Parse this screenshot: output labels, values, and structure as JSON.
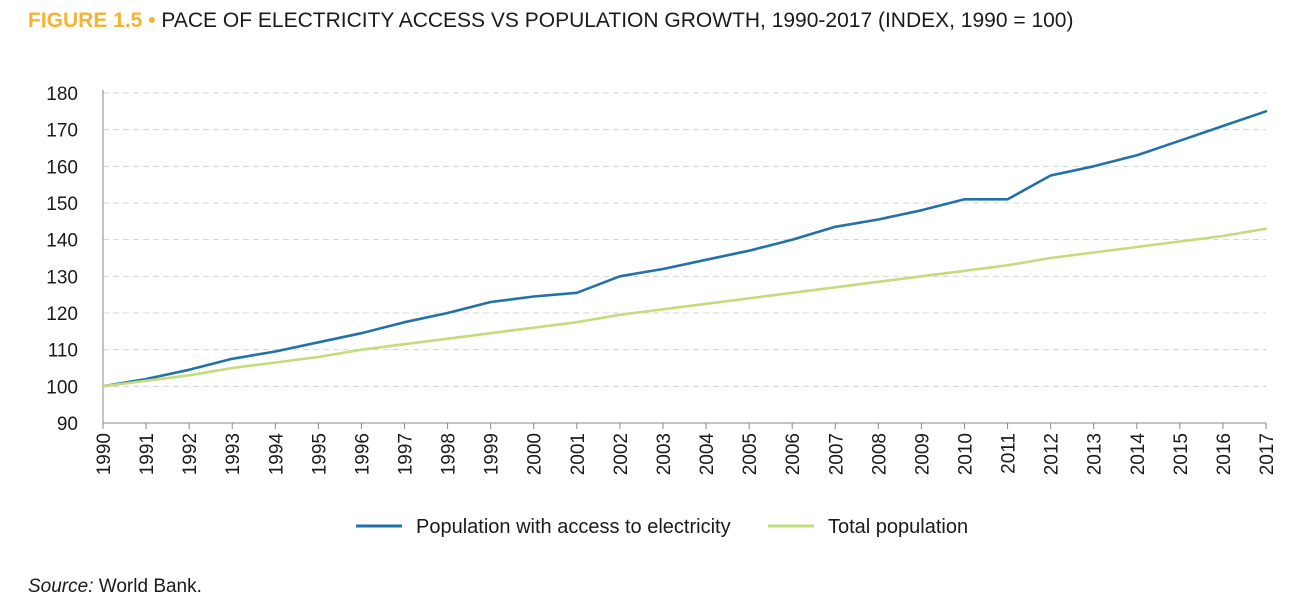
{
  "figure": {
    "label": "FIGURE 1.5",
    "separator": "•",
    "title": "PACE OF ELECTRICITY ACCESS VS POPULATION GROWTH, 1990-2017 (INDEX, 1990 = 100)"
  },
  "source": {
    "label": "Source:",
    "text": "World Bank."
  },
  "chart_data": {
    "type": "line",
    "title": "PACE OF ELECTRICITY ACCESS VS POPULATION GROWTH, 1990-2017 (INDEX, 1990 = 100)",
    "xlabel": "",
    "ylabel": "",
    "ylim": [
      90,
      180
    ],
    "yticks": [
      90,
      100,
      110,
      120,
      130,
      140,
      150,
      160,
      170,
      180
    ],
    "grid": "horizontal dashed",
    "legend_position": "bottom",
    "x": [
      "1990",
      "1991",
      "1992",
      "1993",
      "1994",
      "1995",
      "1996",
      "1997",
      "1998",
      "1999",
      "2000",
      "2001",
      "2002",
      "2003",
      "2004",
      "2005",
      "2006",
      "2007",
      "2008",
      "2009",
      "2010",
      "2011",
      "2012",
      "2013",
      "2014",
      "2015",
      "2016",
      "2017"
    ],
    "series": [
      {
        "name": "Population with access to electricity",
        "color": "#2272a8",
        "values": [
          100,
          102,
          104.5,
          107.5,
          109.5,
          112,
          114.5,
          117.5,
          120,
          123,
          124.5,
          125.5,
          130,
          132,
          134.5,
          137,
          140,
          143.5,
          145.5,
          148,
          151,
          151,
          157.5,
          160,
          163,
          167,
          171,
          175
        ]
      },
      {
        "name": "Total population",
        "color": "#c3dc7c",
        "values": [
          100,
          101.5,
          103,
          105,
          106.5,
          108,
          110,
          111.5,
          113,
          114.5,
          116,
          117.5,
          119.5,
          121,
          122.5,
          124,
          125.5,
          127,
          128.5,
          130,
          131.5,
          133,
          135,
          136.5,
          138,
          139.5,
          141,
          143
        ]
      }
    ]
  }
}
